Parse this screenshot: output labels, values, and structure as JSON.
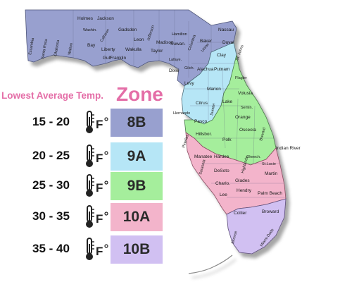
{
  "legend": {
    "subtitle": "Lowest Average Temp.",
    "title": "Zone",
    "rows": [
      {
        "range": "15 - 20",
        "zone": "8B",
        "color": "#98a0cf"
      },
      {
        "range": "20 - 25",
        "zone": "9A",
        "color": "#b6e6f6"
      },
      {
        "range": "25 - 30",
        "zone": "9B",
        "color": "#a5ee9c"
      },
      {
        "range": "30 - 35",
        "zone": "10A",
        "color": "#f3b4cb"
      },
      {
        "range": "35 - 40",
        "zone": "10B",
        "color": "#d1c0f2"
      }
    ],
    "unit_icon": "thermometer-fahrenheit-icon"
  },
  "map": {
    "counties": {
      "holmes": "Holmes",
      "jackson": "Jackson",
      "washington": "Washin.",
      "calhoun": "Calhoun",
      "gadsden": "Gadsden",
      "jefferson": "Jefferson",
      "hamilton": "Hamilton",
      "nassau": "Nassau",
      "escambia": "Escambia",
      "santa_rosa": "Santa Rosa",
      "okaloosa": "Okaloosa",
      "walton": "Walton",
      "bay": "Bay",
      "gulf": "Gulf",
      "liberty": "Liberty",
      "franklin": "Franklin",
      "leon": "Leon",
      "wakulla": "Wakulla",
      "madison": "Madison",
      "taylor": "Taylor",
      "suwannee": "Suwan.",
      "columbia": "Columbia",
      "baker": "Baker",
      "union": "Union",
      "duval": "Duval",
      "clay": "Clay",
      "st_johns": "St. Johns",
      "lafayette": "Lafaye.",
      "dixie": "Dixie",
      "gilchrist": "Gilch.",
      "alachua": "Alachua",
      "putnam": "Putnam",
      "flagler": "Flagler",
      "levy": "Levy",
      "marion": "Marion",
      "volusia": "Volusia",
      "lake": "Lake",
      "citrus": "Citrus",
      "sumter": "Sumter",
      "seminole": "Semin.",
      "orange": "Orange",
      "hernando": "Hernando",
      "pasco": "Pasco",
      "osceola": "Osceola",
      "brevard": "Brevard",
      "pinellas": "Pinellas",
      "hillsborough": "Hillsbor.",
      "polk": "Polk",
      "indian_river": "Indian River",
      "manatee": "Manatee",
      "hardee": "Hardee",
      "highlands": "Highlands",
      "okeechobee": "Okeech.",
      "sarasota": "Sarasota",
      "desoto": "DeSoto",
      "st_lucie": "St.Lucie",
      "martin": "Martin",
      "charlotte": "Charlo.",
      "glades": "Glades",
      "lee": "Lee",
      "hendry": "Hendry",
      "palm_beach": "Palm Beach",
      "collier": "Collier",
      "broward": "Broward",
      "monroe": "Monroe",
      "miami_dade": "Miami-Dade"
    }
  }
}
